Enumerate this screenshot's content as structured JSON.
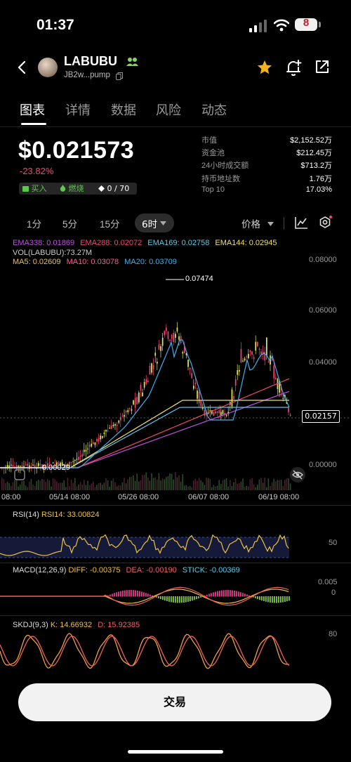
{
  "status_bar": {
    "time": "01:37",
    "battery": "8"
  },
  "token": {
    "name": "LABUBU",
    "address": "JB2w...pump"
  },
  "tabs": [
    {
      "label": "图表",
      "active": true
    },
    {
      "label": "详情"
    },
    {
      "label": "数据"
    },
    {
      "label": "风险"
    },
    {
      "label": "动态"
    }
  ],
  "price": {
    "value": "$0.021573",
    "change": "-23.82%"
  },
  "badges": {
    "buy": "买入",
    "burn": "燃烧",
    "count": "0 / 70"
  },
  "stats": [
    {
      "label": "市值",
      "value": "$2,152.52万"
    },
    {
      "label": "资金池",
      "value": "$212.45万"
    },
    {
      "label": "24小时成交额",
      "value": "$713.2万"
    },
    {
      "label": "持币地址数",
      "value": "1.76万"
    },
    {
      "label": "Top 10",
      "value": "17.03%"
    }
  ],
  "timeframes": {
    "items": [
      "1分",
      "5分",
      "15分"
    ],
    "active": "6时",
    "price_toggle": "价格"
  },
  "indicators": {
    "ema338": "EMA338: 0.01869",
    "ema288": "EMA288: 0.02072",
    "ema169": "EMA169: 0.02758",
    "ema144": "EMA144: 0.02945",
    "vol": "VOL(LABUBU):73.27M",
    "ma5": "MA5: 0.02609",
    "ma10": "MA10: 0.03078",
    "ma20": "MA20: 0.03709"
  },
  "colors": {
    "ema338": "#c050e0",
    "ema288": "#f04870",
    "ema169": "#5cc8e8",
    "ema144": "#f0e070",
    "ma5": "#f0c040",
    "ma10": "#f06090",
    "ma20": "#40b0f0",
    "up": "#e0e860",
    "down": "#f04870"
  },
  "main_chart": {
    "y_ticks": [
      "0.08000",
      "0.06000",
      "0.04000",
      "0.00000"
    ],
    "high_label": "0.07474",
    "low_label": "0.00029",
    "current_price": "0.02157",
    "dates": [
      "08:00",
      "05/14 08:00",
      "05/26 08:00",
      "06/07 08:00",
      "06/19 08:00"
    ]
  },
  "rsi": {
    "title": "RSI(14)",
    "value": "RSI14: 33.00824",
    "tick": "50"
  },
  "macd": {
    "title": "MACD(12,26,9)",
    "diff": "DIFF: -0.00375",
    "dea": "DEA: -0.00190",
    "stick": "STICK: -0.00369",
    "ticks": [
      "0.005",
      "0"
    ]
  },
  "skdj": {
    "title": "SKDJ(9,3)",
    "k": "K: 14.66932",
    "d": "D: 15.92385",
    "tick": "80"
  },
  "trade_button": "交易"
}
